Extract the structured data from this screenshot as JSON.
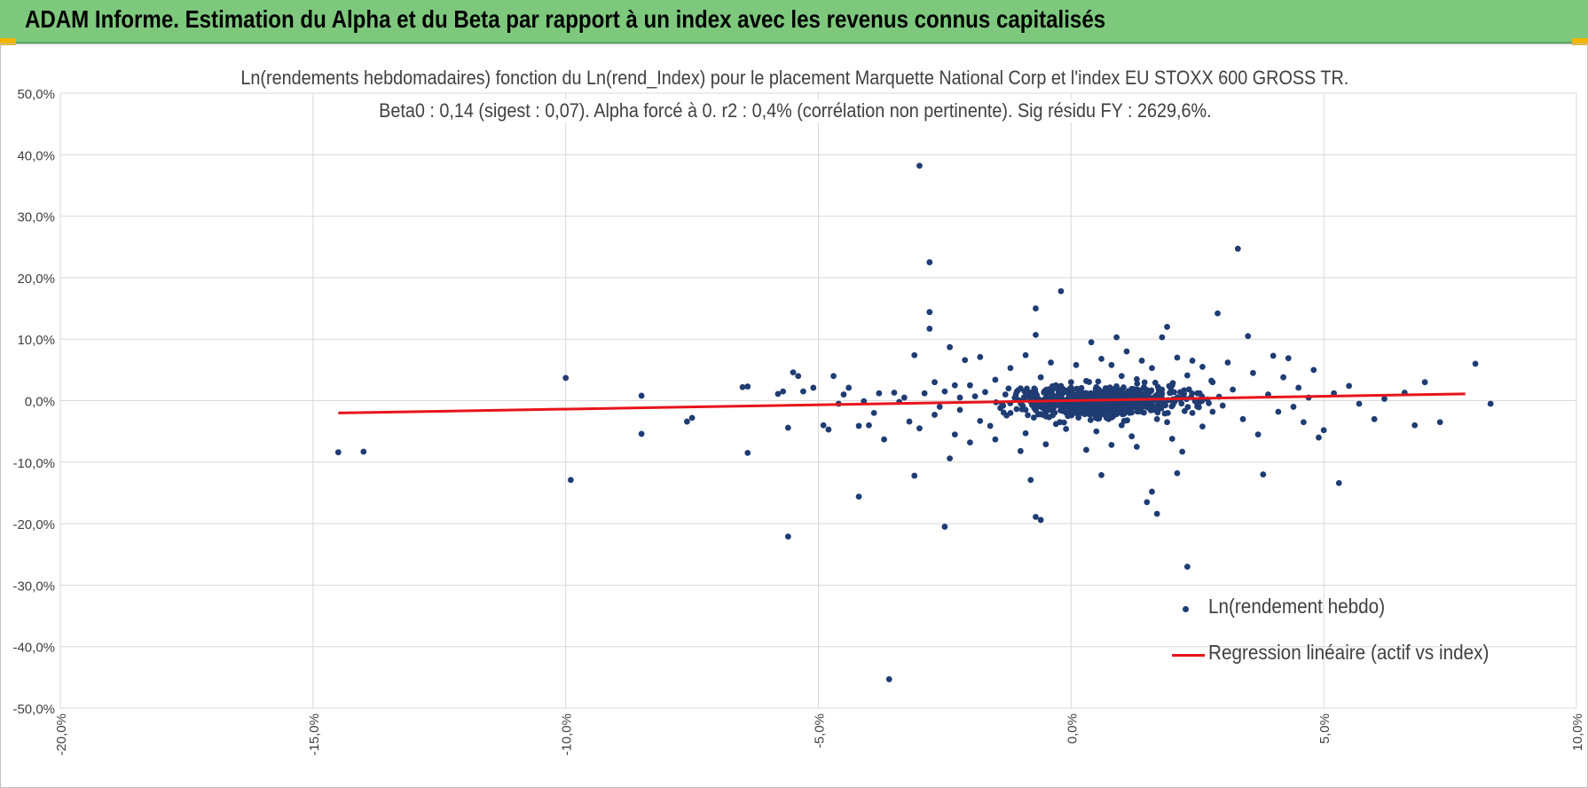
{
  "banner": {
    "title": "ADAM Informe. Estimation du Alpha et du Beta par rapport à un index avec les revenus connus capitalisés"
  },
  "colors": {
    "banner": "#7dc87d",
    "points": "#1f3c73",
    "regression": "#e8141b",
    "grid": "#d9d9d9",
    "corner": "#f2b600"
  },
  "chart_data": {
    "type": "scatter",
    "title": "Ln(rendements hebdomadaires) fonction du Ln(rend_Index) pour le placement Marquette National Corp et l'index EU STOXX 600 GROSS TR.",
    "subtitle": "Beta0 : 0,14 (sigest : 0,07).  Alpha forcé à 0. r2 : 0,4% (corrélation non pertinente). Sig résidu FY : 2629,6%.",
    "xlim": [
      -0.2,
      0.1
    ],
    "ylim": [
      -0.5,
      0.5
    ],
    "x_ticks": [
      "-20,0%",
      "-15,0%",
      "-10,0%",
      "-5,0%",
      "0,0%",
      "5,0%",
      "10,0%"
    ],
    "y_ticks": [
      "50,0%",
      "40,0%",
      "30,0%",
      "20,0%",
      "10,0%",
      "0,0%",
      "-10,0%",
      "-20,0%",
      "-30,0%",
      "-40,0%",
      "-50,0%"
    ],
    "grid": true,
    "legend_position": "bottom-right",
    "series": [
      {
        "name": "Ln(rendement hebdo)",
        "type": "scatter",
        "points": [
          [
            -0.145,
            -0.084
          ],
          [
            -0.14,
            -0.083
          ],
          [
            -0.1,
            0.037
          ],
          [
            -0.099,
            -0.129
          ],
          [
            -0.085,
            0.008
          ],
          [
            -0.085,
            -0.054
          ],
          [
            -0.076,
            -0.034
          ],
          [
            -0.075,
            -0.028
          ],
          [
            -0.065,
            0.022
          ],
          [
            -0.064,
            0.023
          ],
          [
            -0.064,
            -0.085
          ],
          [
            -0.058,
            0.011
          ],
          [
            -0.057,
            0.015
          ],
          [
            -0.056,
            -0.221
          ],
          [
            -0.056,
            -0.044
          ],
          [
            -0.055,
            0.046
          ],
          [
            -0.054,
            0.04
          ],
          [
            -0.053,
            0.015
          ],
          [
            -0.051,
            0.021
          ],
          [
            -0.049,
            -0.04
          ],
          [
            -0.048,
            -0.047
          ],
          [
            -0.047,
            0.04
          ],
          [
            -0.046,
            -0.005
          ],
          [
            -0.045,
            0.01
          ],
          [
            -0.044,
            0.021
          ],
          [
            -0.042,
            -0.156
          ],
          [
            -0.042,
            -0.041
          ],
          [
            -0.041,
            -0.001
          ],
          [
            -0.04,
            -0.04
          ],
          [
            -0.039,
            -0.02
          ],
          [
            -0.038,
            0.012
          ],
          [
            -0.037,
            -0.063
          ],
          [
            -0.036,
            -0.453
          ],
          [
            -0.035,
            0.013
          ],
          [
            -0.034,
            -0.002
          ],
          [
            -0.033,
            0.005
          ],
          [
            -0.032,
            -0.034
          ],
          [
            -0.031,
            0.074
          ],
          [
            -0.031,
            -0.122
          ],
          [
            -0.03,
            0.382
          ],
          [
            -0.03,
            -0.045
          ],
          [
            -0.029,
            0.012
          ],
          [
            -0.028,
            0.225
          ],
          [
            -0.028,
            0.144
          ],
          [
            -0.028,
            0.117
          ],
          [
            -0.027,
            0.03
          ],
          [
            -0.027,
            -0.023
          ],
          [
            -0.026,
            -0.01
          ],
          [
            -0.025,
            0.015
          ],
          [
            -0.025,
            -0.205
          ],
          [
            -0.024,
            -0.094
          ],
          [
            -0.024,
            0.087
          ],
          [
            -0.023,
            -0.055
          ],
          [
            -0.023,
            0.025
          ],
          [
            -0.022,
            0.005
          ],
          [
            -0.022,
            -0.015
          ],
          [
            -0.021,
            0.066
          ],
          [
            -0.02,
            -0.068
          ],
          [
            -0.02,
            0.025
          ],
          [
            -0.019,
            0.007
          ],
          [
            -0.018,
            -0.033
          ],
          [
            -0.018,
            0.071
          ],
          [
            -0.017,
            0.014
          ],
          [
            -0.016,
            -0.041
          ],
          [
            -0.015,
            -0.063
          ],
          [
            -0.015,
            0.034
          ],
          [
            -0.014,
            -0.012
          ],
          [
            -0.013,
            0.01
          ],
          [
            -0.012,
            0.053
          ],
          [
            -0.012,
            -0.02
          ],
          [
            -0.011,
            0.003
          ],
          [
            -0.01,
            -0.082
          ],
          [
            -0.01,
            0.02
          ],
          [
            -0.009,
            -0.053
          ],
          [
            -0.009,
            0.074
          ],
          [
            -0.008,
            0.005
          ],
          [
            -0.008,
            -0.129
          ],
          [
            -0.007,
            0.15
          ],
          [
            -0.007,
            -0.189
          ],
          [
            -0.007,
            0.107
          ],
          [
            -0.006,
            -0.194
          ],
          [
            -0.006,
            0.038
          ],
          [
            -0.005,
            -0.071
          ],
          [
            -0.005,
            -0.019
          ],
          [
            -0.004,
            0.062
          ],
          [
            -0.004,
            -0.003
          ],
          [
            -0.003,
            0.025
          ],
          [
            -0.003,
            -0.038
          ],
          [
            -0.002,
            0.178
          ],
          [
            -0.002,
            0.003
          ],
          [
            -0.001,
            -0.046
          ],
          [
            -0.001,
            0.015
          ],
          [
            0.0,
            -0.008
          ],
          [
            0.0,
            0.03
          ],
          [
            0.001,
            0.058
          ],
          [
            0.002,
            -0.02
          ],
          [
            0.002,
            0.008
          ],
          [
            0.003,
            -0.08
          ],
          [
            0.003,
            0.032
          ],
          [
            0.004,
            -0.003
          ],
          [
            0.004,
            0.095
          ],
          [
            0.005,
            -0.05
          ],
          [
            0.005,
            0.022
          ],
          [
            0.006,
            -0.121
          ],
          [
            0.006,
            0.068
          ],
          [
            0.007,
            -0.028
          ],
          [
            0.007,
            0.008
          ],
          [
            0.008,
            0.058
          ],
          [
            0.008,
            -0.072
          ],
          [
            0.009,
            0.103
          ],
          [
            0.009,
            -0.015
          ],
          [
            0.01,
            0.04
          ],
          [
            0.01,
            -0.04
          ],
          [
            0.011,
            0.002
          ],
          [
            0.011,
            0.08
          ],
          [
            0.012,
            -0.058
          ],
          [
            0.012,
            0.019
          ],
          [
            0.013,
            -0.075
          ],
          [
            0.013,
            0.035
          ],
          [
            0.014,
            -0.018
          ],
          [
            0.014,
            0.065
          ],
          [
            0.015,
            -0.165
          ],
          [
            0.015,
            0.01
          ],
          [
            0.016,
            -0.148
          ],
          [
            0.016,
            0.053
          ],
          [
            0.017,
            -0.184
          ],
          [
            0.017,
            -0.03
          ],
          [
            0.018,
            0.103
          ],
          [
            0.018,
            0.011
          ],
          [
            0.019,
            -0.035
          ],
          [
            0.019,
            0.12
          ],
          [
            0.02,
            -0.062
          ],
          [
            0.02,
            0.025
          ],
          [
            0.021,
            -0.118
          ],
          [
            0.021,
            0.07
          ],
          [
            0.022,
            -0.083
          ],
          [
            0.022,
            0.005
          ],
          [
            0.023,
            -0.27
          ],
          [
            0.023,
            0.041
          ],
          [
            0.024,
            -0.02
          ],
          [
            0.024,
            0.065
          ],
          [
            0.025,
            0.012
          ],
          [
            0.026,
            -0.042
          ],
          [
            0.026,
            0.055
          ],
          [
            0.027,
            0.002
          ],
          [
            0.028,
            -0.018
          ],
          [
            0.028,
            0.03
          ],
          [
            0.029,
            0.142
          ],
          [
            0.03,
            -0.008
          ],
          [
            0.031,
            0.062
          ],
          [
            0.032,
            0.018
          ],
          [
            0.033,
            0.247
          ],
          [
            0.034,
            -0.03
          ],
          [
            0.035,
            0.105
          ],
          [
            0.036,
            0.045
          ],
          [
            0.037,
            -0.055
          ],
          [
            0.038,
            -0.12
          ],
          [
            0.039,
            0.01
          ],
          [
            0.04,
            0.073
          ],
          [
            0.041,
            -0.018
          ],
          [
            0.042,
            0.038
          ],
          [
            0.043,
            0.069
          ],
          [
            0.044,
            -0.01
          ],
          [
            0.045,
            0.021
          ],
          [
            0.046,
            -0.035
          ],
          [
            0.047,
            0.005
          ],
          [
            0.048,
            0.05
          ],
          [
            0.049,
            -0.06
          ],
          [
            0.05,
            -0.048
          ],
          [
            0.052,
            0.012
          ],
          [
            0.053,
            -0.134
          ],
          [
            0.055,
            0.024
          ],
          [
            0.057,
            -0.005
          ],
          [
            0.06,
            -0.03
          ],
          [
            0.062,
            0.003
          ],
          [
            0.066,
            0.013
          ],
          [
            0.068,
            -0.04
          ],
          [
            0.07,
            0.03
          ],
          [
            0.073,
            -0.035
          ],
          [
            0.08,
            0.06
          ],
          [
            0.083,
            -0.005
          ]
        ],
        "cluster_points_approx": 720
      },
      {
        "name": "Regression linéaire (actif vs index)",
        "type": "line",
        "x": [
          -0.145,
          0.078
        ],
        "y": [
          -0.02,
          0.011
        ]
      }
    ]
  }
}
